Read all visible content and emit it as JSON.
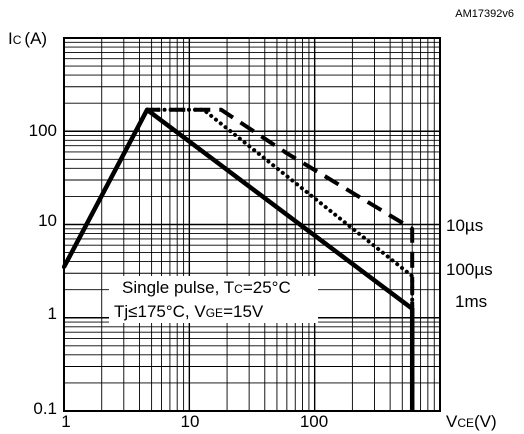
{
  "chart_data": {
    "type": "line",
    "code": "AM17392v6",
    "y_axis": {
      "label_main": "I",
      "label_sub": "C",
      "label_unit": "(A)",
      "scale": "log",
      "range": [
        0.1,
        1000
      ],
      "tick_labels": [
        "100",
        "10",
        "1",
        "0.1"
      ]
    },
    "x_axis": {
      "label_main": "V",
      "label_sub": "CE",
      "label_unit": "(V)",
      "scale": "log",
      "range": [
        1,
        1000
      ],
      "tick_labels": [
        "1",
        "10",
        "100"
      ]
    },
    "grid": true,
    "annotation": {
      "line1_main": "Single pulse, T",
      "line1_sub": "C",
      "line1_tail": "=25°C",
      "line2_main": "Tj≤175°C, V",
      "line2_sub": "GE",
      "line2_tail": "=15V"
    },
    "series": [
      {
        "name": "10µs",
        "style": "dashed",
        "points": [
          [
            1,
            3.5
          ],
          [
            4.6,
            170
          ],
          [
            18,
            170
          ],
          [
            60,
            58
          ],
          [
            600,
            9
          ],
          [
            600,
            0.1
          ]
        ]
      },
      {
        "name": "100µs",
        "style": "dotted",
        "points": [
          [
            1,
            3.5
          ],
          [
            4.6,
            170
          ],
          [
            13,
            170
          ],
          [
            600,
            2.8
          ],
          [
            600,
            0.1
          ]
        ]
      },
      {
        "name": "1ms",
        "style": "solid",
        "points": [
          [
            1,
            3.5
          ],
          [
            4.6,
            170
          ],
          [
            600,
            1.25
          ],
          [
            600,
            0.1
          ]
        ]
      }
    ]
  }
}
